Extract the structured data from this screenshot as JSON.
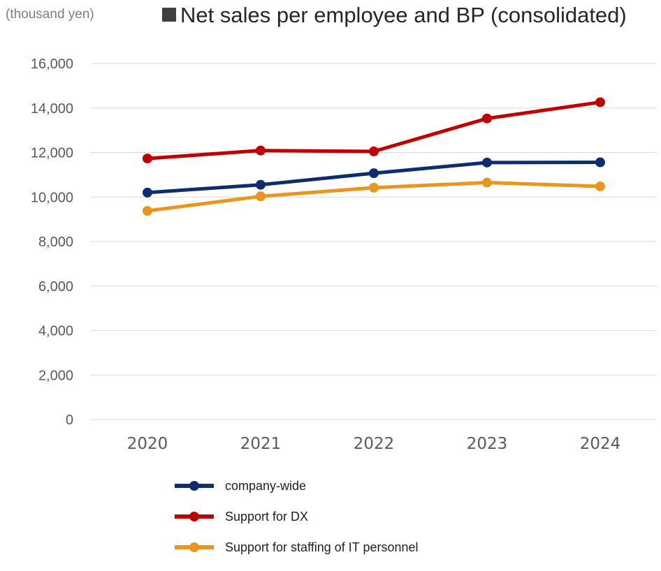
{
  "unit_label": "(thousand yen)",
  "chart_data": {
    "type": "line",
    "title": "Net sales per employee and BP (consolidated)",
    "ylabel": "(thousand yen)",
    "xlabel": "",
    "categories": [
      "2020",
      "2021",
      "2022",
      "2023",
      "2024"
    ],
    "ylim": [
      0,
      16000
    ],
    "yticks": [
      "0",
      "2,000",
      "4,000",
      "6,000",
      "8,000",
      "10,000",
      "12,000",
      "14,000",
      "16,000"
    ],
    "ytick_values": [
      0,
      2000,
      4000,
      6000,
      8000,
      10000,
      12000,
      14000,
      16000
    ],
    "grid": true,
    "legend_position": "bottom",
    "series": [
      {
        "name": "company-wide",
        "color": "#0e2d6e",
        "values": [
          10200,
          10550,
          11070,
          11550,
          11560
        ]
      },
      {
        "name": "Support for DX",
        "color": "#c00000",
        "values": [
          11730,
          12090,
          12050,
          13530,
          14260
        ]
      },
      {
        "name": "Support for staffing of IT personnel",
        "color": "#e8961e",
        "values": [
          9380,
          10030,
          10420,
          10650,
          10480
        ]
      }
    ]
  }
}
